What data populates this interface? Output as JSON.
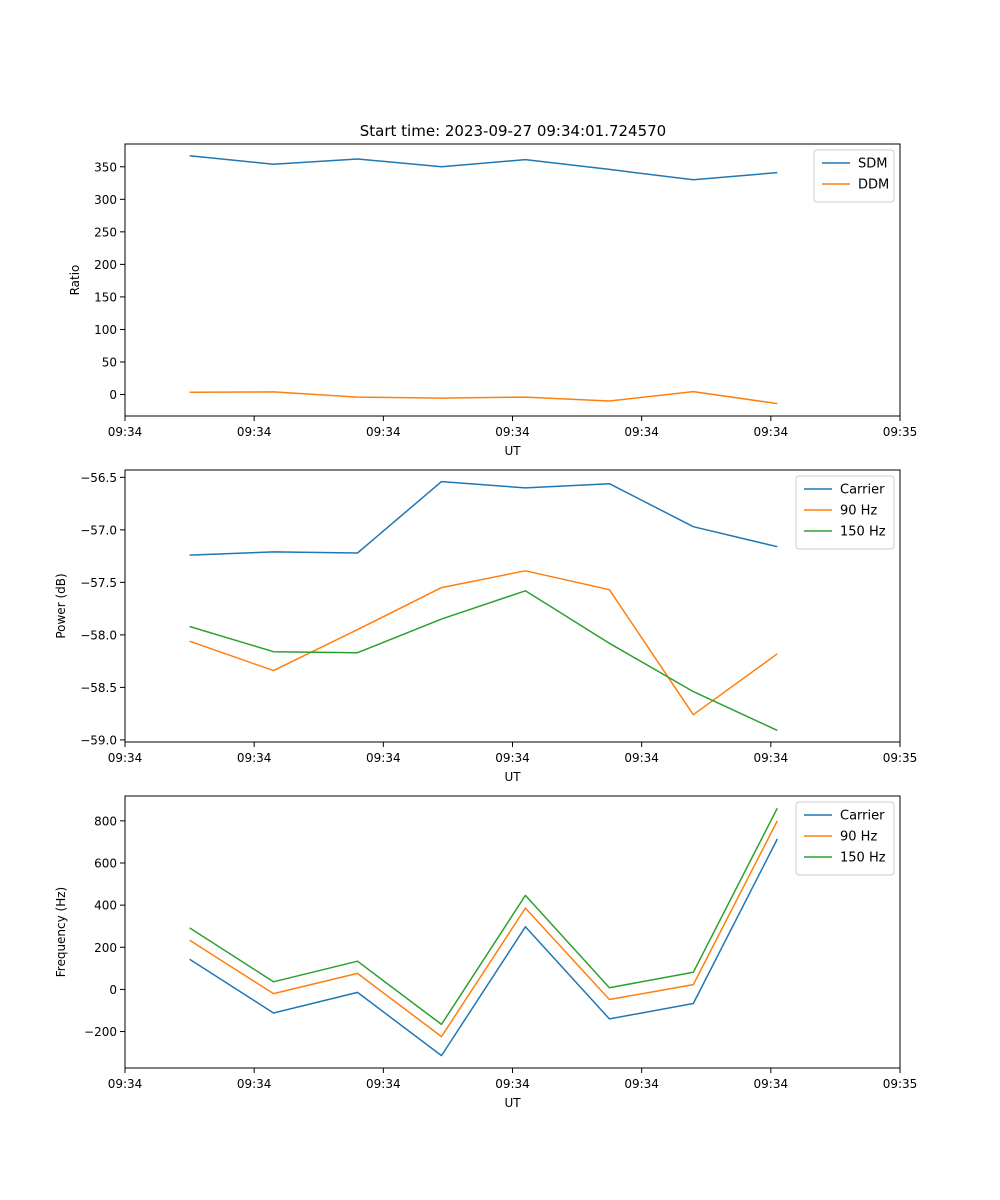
{
  "figure_title": "Start time: 2023-09-27 09:34:01.724570",
  "chart_data": [
    {
      "type": "line",
      "title": "Start time: 2023-09-27 09:34:01.724570",
      "xlabel": "UT",
      "ylabel": "Ratio",
      "x": [
        0.5,
        1.15,
        1.8,
        2.45,
        3.1,
        3.75,
        4.4,
        5.05
      ],
      "xlim": [
        0,
        6
      ],
      "xticks": [
        0,
        1,
        2,
        3,
        4,
        5,
        6
      ],
      "xtick_labels": [
        "09:34",
        "09:34",
        "09:34",
        "09:34",
        "09:34",
        "09:34",
        "09:35"
      ],
      "ylim": [
        -33,
        385
      ],
      "yticks": [
        0,
        50,
        100,
        150,
        200,
        250,
        300,
        350
      ],
      "ytick_labels": [
        "0",
        "50",
        "100",
        "150",
        "200",
        "250",
        "300",
        "350"
      ],
      "legend": "top-right",
      "series": [
        {
          "name": "SDM",
          "color": "#1f77b4",
          "values": [
            367,
            354,
            362,
            350,
            361,
            346,
            330,
            341
          ]
        },
        {
          "name": "DDM",
          "color": "#ff7f0e",
          "values": [
            3.5,
            4,
            -4,
            -5.5,
            -4,
            -10,
            4.5,
            -14
          ]
        }
      ]
    },
    {
      "type": "line",
      "xlabel": "UT",
      "ylabel": "Power (dB)",
      "x": [
        0.5,
        1.15,
        1.8,
        2.45,
        3.1,
        3.75,
        4.4,
        5.05
      ],
      "xlim": [
        0,
        6
      ],
      "xticks": [
        0,
        1,
        2,
        3,
        4,
        5,
        6
      ],
      "xtick_labels": [
        "09:34",
        "09:34",
        "09:34",
        "09:34",
        "09:34",
        "09:34",
        "09:35"
      ],
      "ylim": [
        -59.02,
        -56.43
      ],
      "yticks": [
        -59.0,
        -58.5,
        -58.0,
        -57.5,
        -57.0,
        -56.5
      ],
      "ytick_labels": [
        "−59.0",
        "−58.5",
        "−58.0",
        "−57.5",
        "−57.0",
        "−56.5"
      ],
      "legend": "top-right",
      "series": [
        {
          "name": "Carrier",
          "color": "#1f77b4",
          "values": [
            -57.24,
            -57.21,
            -57.22,
            -56.54,
            -56.6,
            -56.56,
            -56.97,
            -57.16
          ]
        },
        {
          "name": "90 Hz",
          "color": "#ff7f0e",
          "values": [
            -58.06,
            -58.34,
            -57.95,
            -57.55,
            -57.39,
            -57.57,
            -58.76,
            -58.18
          ]
        },
        {
          "name": "150 Hz",
          "color": "#2ca02c",
          "values": [
            -57.92,
            -58.16,
            -58.17,
            -57.85,
            -57.58,
            -58.08,
            -58.54,
            -58.91
          ]
        }
      ]
    },
    {
      "type": "line",
      "xlabel": "UT",
      "ylabel": "Frequency (Hz)",
      "x": [
        0.5,
        1.15,
        1.8,
        2.45,
        3.1,
        3.75,
        4.4,
        5.05
      ],
      "xlim": [
        0,
        6
      ],
      "xticks": [
        0,
        1,
        2,
        3,
        4,
        5,
        6
      ],
      "xtick_labels": [
        "09:34",
        "09:34",
        "09:34",
        "09:34",
        "09:34",
        "09:34",
        "09:35"
      ],
      "ylim": [
        -373,
        918
      ],
      "yticks": [
        -200,
        0,
        200,
        400,
        600,
        800
      ],
      "ytick_labels": [
        "−200",
        "0",
        "200",
        "400",
        "600",
        "800"
      ],
      "legend": "top-right",
      "series": [
        {
          "name": "Carrier",
          "color": "#1f77b4",
          "values": [
            143,
            -112,
            -14,
            -314,
            297,
            -140,
            -67,
            714
          ]
        },
        {
          "name": "90 Hz",
          "color": "#ff7f0e",
          "values": [
            233,
            -20,
            76,
            -224,
            386,
            -48,
            23,
            800
          ]
        },
        {
          "name": "150 Hz",
          "color": "#2ca02c",
          "values": [
            292,
            36,
            134,
            -166,
            446,
            8,
            81,
            860
          ]
        }
      ]
    }
  ]
}
